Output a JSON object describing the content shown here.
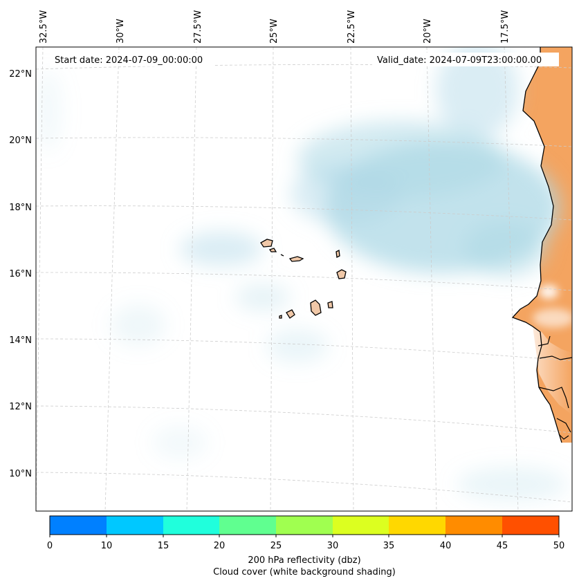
{
  "map": {
    "start_label": "Start date: 2024-07-09_00:00:00",
    "valid_label": "Valid_date: 2024-07-09T23:00:00.00",
    "lon_ticks": [
      "32.5°W",
      "30°W",
      "27.5°W",
      "25°W",
      "22.5°W",
      "20°W",
      "17.5°W"
    ],
    "lat_ticks": [
      "22°N",
      "20°N",
      "18°N",
      "16°N",
      "14°N",
      "12°N",
      "10°N"
    ],
    "extent": {
      "lon_min": -32.8,
      "lon_max": -15.4,
      "lat_min": 8.9,
      "lat_max": 22.8
    },
    "land_color": "#f4a460",
    "cloud_color": "#add8e6",
    "coastline_color": "#000000",
    "gridlines": true
  },
  "colorbar": {
    "ticks": [
      "0",
      "10",
      "15",
      "20",
      "25",
      "30",
      "35",
      "40",
      "45",
      "50"
    ],
    "colors": [
      "#0080ff",
      "#00c8ff",
      "#20ffdc",
      "#60ff90",
      "#a0ff50",
      "#dcff20",
      "#ffd800",
      "#ff8c00",
      "#ff5000"
    ],
    "label_line1": "200 hPa reflectivity (dbz)",
    "label_line2": "Cloud cover (white background shading)"
  }
}
